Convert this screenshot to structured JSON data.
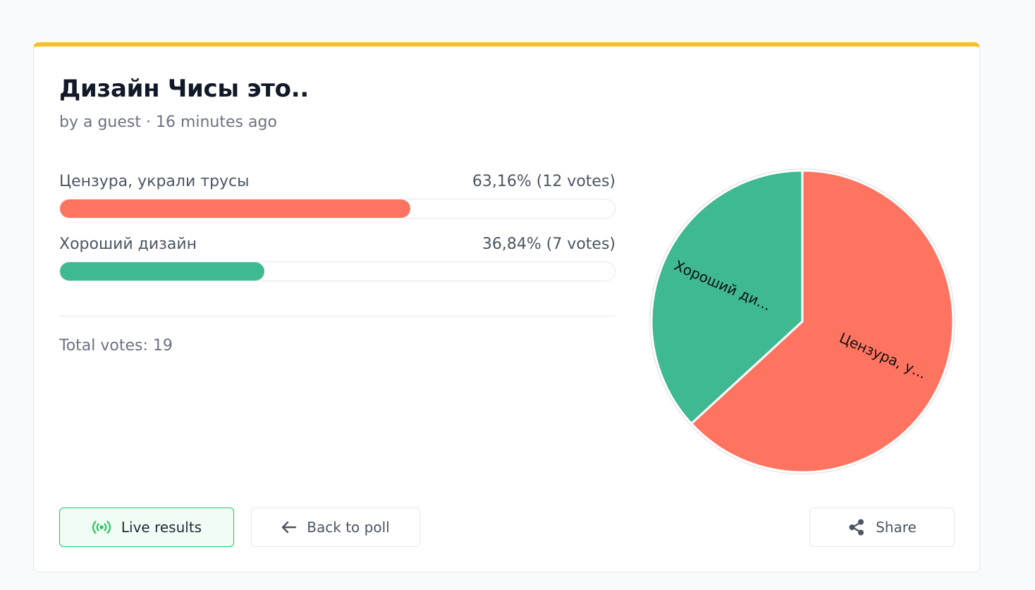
{
  "poll": {
    "title": "Дизайн Чисы это..",
    "meta": "by a guest · 16 minutes ago",
    "total_label": "Total votes: 19",
    "options": [
      {
        "label": "Цензура, украли трусы",
        "result": "63,16% (12 votes)",
        "percent": 63.16,
        "votes": 12,
        "color": "#ff7461",
        "pie_label": "Цензура, у..."
      },
      {
        "label": "Хороший дизайн",
        "result": "36,84% (7 votes)",
        "percent": 36.84,
        "votes": 7,
        "color": "#3eb991",
        "pie_label": "Хороший ди..."
      }
    ]
  },
  "buttons": {
    "live": "Live results",
    "back": "Back to poll",
    "share": "Share"
  },
  "colors": {
    "accent_top": "#fbbf24",
    "live_green": "#22c55e"
  },
  "icons": {
    "live": "broadcast-icon",
    "back": "arrow-left-icon",
    "share": "share-icon"
  },
  "chart_data": {
    "type": "pie",
    "categories": [
      "Цензура, у...",
      "Хороший ди..."
    ],
    "values": [
      12,
      7
    ],
    "colors": [
      "#ff7461",
      "#3eb991"
    ]
  }
}
